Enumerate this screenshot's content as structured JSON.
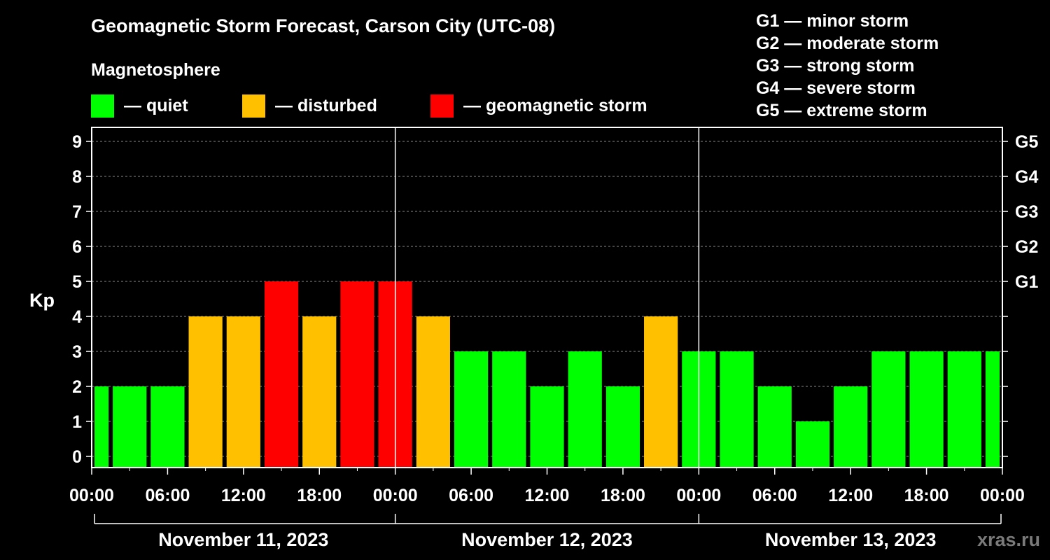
{
  "title": "Geomagnetic Storm Forecast, Carson City (UTC-08)",
  "legend": {
    "heading": "Magnetosphere",
    "items": [
      {
        "label": "— quiet",
        "color": "#00ff00"
      },
      {
        "label": "— disturbed",
        "color": "#ffc000"
      },
      {
        "label": "— geomagnetic storm",
        "color": "#ff0000"
      }
    ]
  },
  "g_scale": [
    "G1 — minor storm",
    "G2 — moderate storm",
    "G3 — strong storm",
    "G4 — severe storm",
    "G5 — extreme storm"
  ],
  "watermark": "xras.ru",
  "chart_data": {
    "type": "bar",
    "ylabel": "Kp",
    "ylim": [
      0,
      9
    ],
    "y_ticks": [
      "0",
      "1",
      "2",
      "3",
      "4",
      "5",
      "6",
      "7",
      "8",
      "9"
    ],
    "right_ticks": [
      {
        "kp": 5,
        "label": "G1"
      },
      {
        "kp": 6,
        "label": "G2"
      },
      {
        "kp": 7,
        "label": "G3"
      },
      {
        "kp": 8,
        "label": "G4"
      },
      {
        "kp": 9,
        "label": "G5"
      }
    ],
    "x_tick_labels": [
      "00:00",
      "06:00",
      "12:00",
      "18:00",
      "00:00",
      "06:00",
      "12:00",
      "18:00",
      "00:00",
      "06:00",
      "12:00",
      "18:00",
      "00:00"
    ],
    "days": [
      "November 11, 2023",
      "November 12, 2023",
      "November 13, 2023"
    ],
    "grid": "horizontal dashed at each integer Kp",
    "colors": {
      "quiet": "#00ff00",
      "disturbed": "#ffc000",
      "storm": "#ff0000"
    },
    "interval_hours": 3,
    "start_hour": 0,
    "total_hours": 72,
    "values": [
      2,
      2,
      2,
      4,
      4,
      5,
      4,
      5,
      5,
      4,
      3,
      3,
      2,
      3,
      2,
      4,
      3,
      3,
      2,
      1,
      2,
      3,
      3,
      3,
      3
    ]
  }
}
